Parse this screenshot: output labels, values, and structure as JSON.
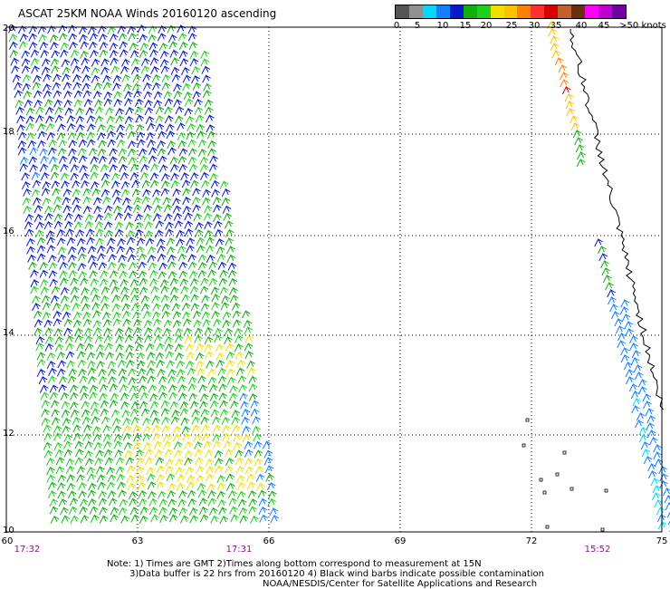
{
  "title": "ASCAT 25KM NOAA Winds 20160120 ascending",
  "legend": {
    "colors": [
      "#555555",
      "#909090",
      "#00d8ff",
      "#1080ff",
      "#0818c8",
      "#10b010",
      "#1ed01e",
      "#f0e000",
      "#ffc000",
      "#ff8000",
      "#ff3030",
      "#d80000",
      "#c06030",
      "#6a2f10",
      "#ff00ff",
      "#c000d0",
      "#7000a0"
    ],
    "labels": [
      "0",
      "5",
      "10",
      "15",
      "20",
      "25",
      "30",
      "35",
      "40",
      "45",
      ">50 knots"
    ]
  },
  "map": {
    "lon_ticks": [
      "60",
      "63",
      "66",
      "69",
      "72",
      "75"
    ],
    "lat_ticks": [
      "20",
      "18",
      "16",
      "14",
      "12",
      "10"
    ]
  },
  "times": [
    "17:32",
    "17:31",
    "15:52"
  ],
  "notes": {
    "line1": "Note: 1) Times are GMT 2)Times along bottom correspond to measurement at 15N",
    "line2": "3)Data buffer is 22 hrs from 20160120 4) Black wind barbs indicate possible contamination",
    "line3": "NOAA/NESDIS/Center for Satellite Applications and Research"
  }
}
